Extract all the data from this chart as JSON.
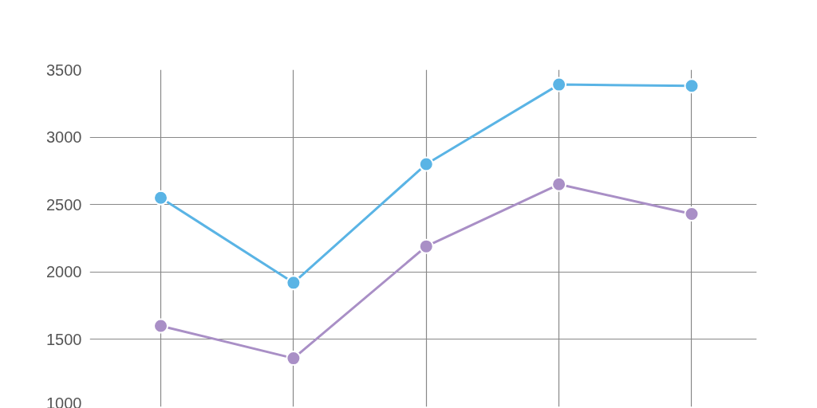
{
  "chart_data": {
    "type": "line",
    "categories": [
      null,
      null,
      null,
      null,
      null
    ],
    "series": [
      {
        "color": "#5ab4e5",
        "values": [
          2550,
          1920,
          2800,
          3390,
          3380
        ]
      },
      {
        "color": "#a98fc6",
        "values": [
          1600,
          1360,
          2190,
          2650,
          2430
        ]
      }
    ],
    "ylim": [
      1000,
      3500
    ],
    "yticks": [
      1000,
      1500,
      2000,
      2500,
      3000,
      3500
    ],
    "grid": true,
    "marker": "circle",
    "line_style": "solid",
    "tick_labels": "y"
  }
}
